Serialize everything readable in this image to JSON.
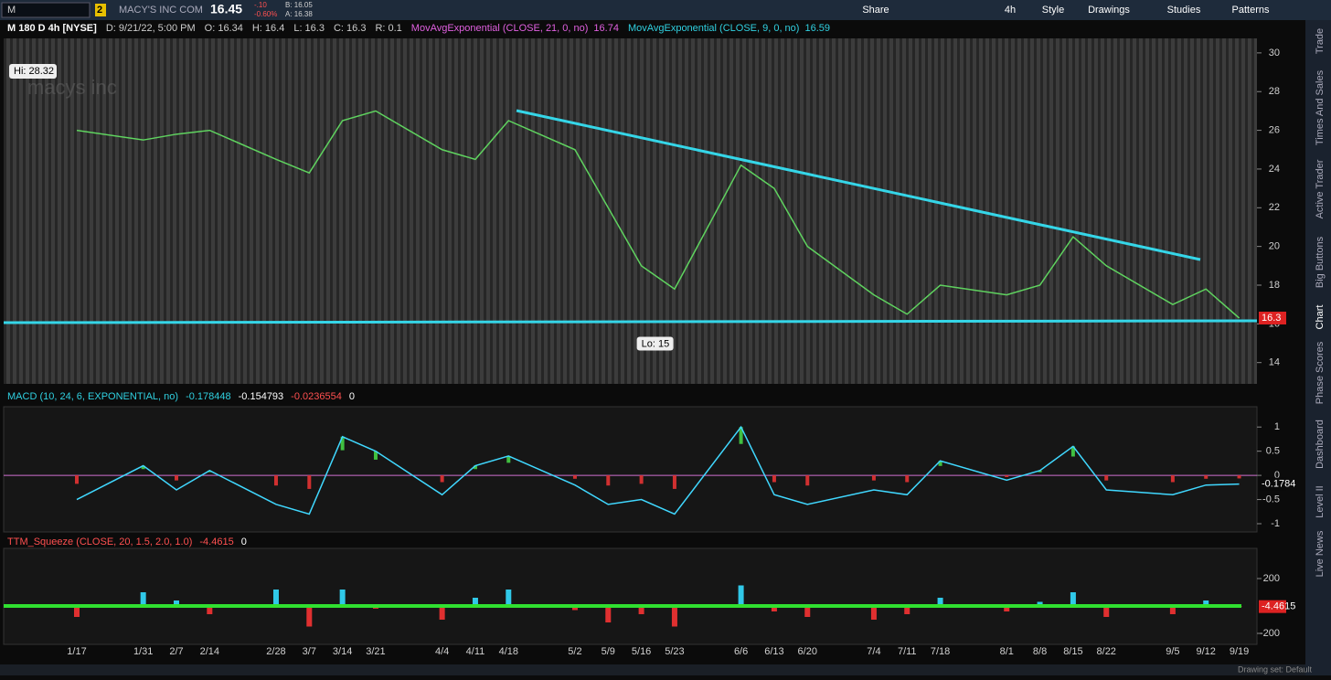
{
  "toolbar": {
    "symbol": "M",
    "badge": "2",
    "company": "MACY'S INC COM",
    "last": "16.45",
    "change": "-.10",
    "change_pct": "-0.60%",
    "bid": "B: 16.05",
    "ask": "A: 16.38",
    "buttons": [
      "Share",
      "4h",
      "Style",
      "Drawings",
      "Studies",
      "Patterns"
    ]
  },
  "sidebar_tabs": [
    "Trade",
    "Times And Sales",
    "Active Trader",
    "Big Buttons",
    "Chart",
    "Phase Scores",
    "Dashboard",
    "Level II",
    "Live News"
  ],
  "price_panel": {
    "header": [
      "M 180 D 4h [NYSE]",
      "D: 9/21/22, 5:00 PM",
      "O: 16.34",
      "H: 16.4",
      "L: 16.3",
      "C: 16.3",
      "R: 0.1"
    ],
    "studies": [
      {
        "name": "MovAvgExponential (CLOSE, 21, 0, no)",
        "value": "16.74"
      },
      {
        "name": "MovAvgExponential (CLOSE, 9, 0, no)",
        "value": "16.59"
      }
    ],
    "hi_label": "Hi: 28.32",
    "lo_label": "Lo: 15",
    "watermark": "macys inc",
    "price_tag": 16.3,
    "ylim": [
      12.9,
      30.75
    ],
    "yticks": [
      14,
      16,
      18,
      20,
      22,
      24,
      26,
      28,
      30
    ]
  },
  "macd_panel": {
    "header": "MACD (10, 24, 6, EXPONENTIAL, no)",
    "readings": [
      "-0.178448",
      "-0.154793",
      "-0.0236554",
      "0"
    ],
    "tag": -0.1784,
    "ylim": [
      -1.17,
      1.42
    ],
    "yticks": [
      1,
      0.5,
      0,
      -0.5,
      -1
    ]
  },
  "squeeze_panel": {
    "header": "TTM_Squeeze (CLOSE, 20, 1.5, 2.0, 1.0)",
    "readings": [
      "-4.4615",
      "0"
    ],
    "tag": -4.4615,
    "ylim": [
      -280,
      420
    ],
    "yticks": [
      200,
      -200
    ]
  },
  "dates": [
    "1/17",
    "1/31",
    "2/7",
    "2/14",
    "2/28",
    "3/7",
    "3/14",
    "3/21",
    "4/4",
    "4/11",
    "4/18",
    "5/2",
    "5/9",
    "5/16",
    "5/23",
    "6/6",
    "6/13",
    "6/20",
    "7/4",
    "7/11",
    "7/18",
    "8/1",
    "8/8",
    "8/15",
    "8/22",
    "9/5",
    "9/12",
    "9/19"
  ],
  "close": [
    26,
    25.5,
    25.8,
    26,
    24.5,
    23.8,
    26.5,
    27,
    25,
    24.5,
    26.5,
    25,
    22,
    19,
    17.8,
    24.2,
    23,
    20,
    17.5,
    16.5,
    18,
    17.5,
    18,
    20.5,
    19,
    17,
    17.8,
    16.3
  ],
  "macd": [
    -0.5,
    0.2,
    -0.3,
    0.1,
    -0.6,
    -0.8,
    0.8,
    0.5,
    -0.4,
    0.2,
    0.4,
    -0.2,
    -0.6,
    -0.5,
    -0.8,
    1.0,
    -0.4,
    -0.6,
    -0.3,
    -0.4,
    0.3,
    -0.1,
    0.1,
    0.6,
    -0.3,
    -0.4,
    -0.2,
    -0.18
  ],
  "squeeze": [
    -80,
    100,
    40,
    -60,
    120,
    -150,
    120,
    -20,
    -100,
    60,
    120,
    -30,
    -120,
    -60,
    -150,
    150,
    -40,
    -80,
    -100,
    -60,
    60,
    -40,
    30,
    100,
    -80,
    -60,
    40,
    -4.46
  ],
  "status": "Drawing set: Default"
}
